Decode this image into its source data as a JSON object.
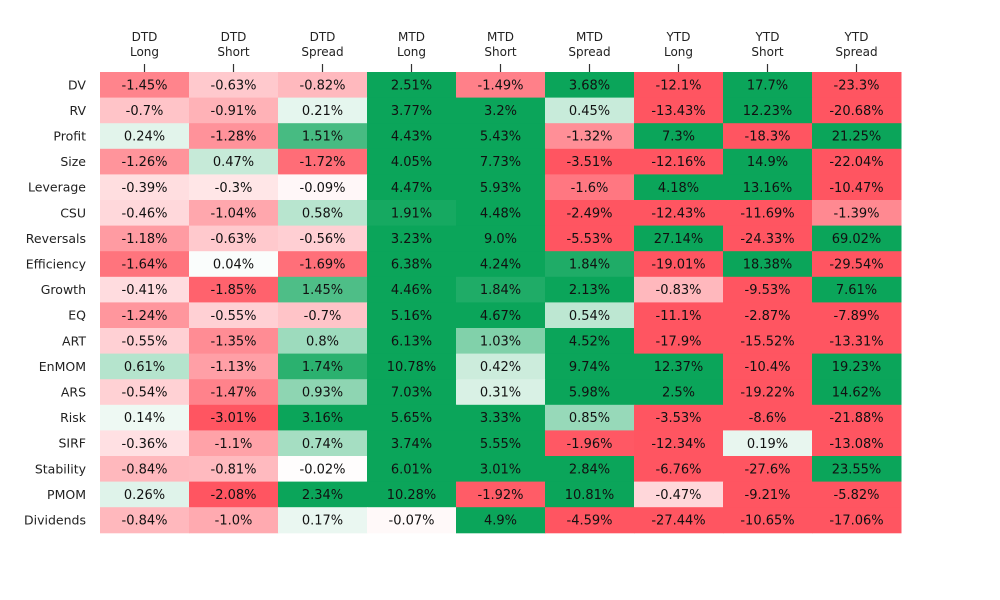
{
  "chart_data": {
    "type": "heatmap",
    "columns": [
      [
        "DTD",
        "Long"
      ],
      [
        "DTD",
        "Short"
      ],
      [
        "DTD",
        "Spread"
      ],
      [
        "MTD",
        "Long"
      ],
      [
        "MTD",
        "Short"
      ],
      [
        "MTD",
        "Spread"
      ],
      [
        "YTD",
        "Long"
      ],
      [
        "YTD",
        "Short"
      ],
      [
        "YTD",
        "Spread"
      ]
    ],
    "rows": [
      "DV",
      "RV",
      "Profit",
      "Size",
      "Leverage",
      "CSU",
      "Reversals",
      "Efficiency",
      "Growth",
      "EQ",
      "ART",
      "EnMOM",
      "ARS",
      "Risk",
      "SIRF",
      "Stability",
      "PMOM",
      "Dividends"
    ],
    "values": [
      [
        -1.45,
        -0.63,
        -0.82,
        2.51,
        -1.49,
        3.68,
        -12.1,
        17.7,
        -23.3
      ],
      [
        -0.7,
        -0.91,
        0.21,
        3.77,
        3.2,
        0.45,
        -13.43,
        12.23,
        -20.68
      ],
      [
        0.24,
        -1.28,
        1.51,
        4.43,
        5.43,
        -1.32,
        7.3,
        -18.3,
        21.25
      ],
      [
        -1.26,
        0.47,
        -1.72,
        4.05,
        7.73,
        -3.51,
        -12.16,
        14.9,
        -22.04
      ],
      [
        -0.39,
        -0.3,
        -0.09,
        4.47,
        5.93,
        -1.6,
        4.18,
        13.16,
        -10.47
      ],
      [
        -0.46,
        -1.04,
        0.58,
        1.91,
        4.48,
        -2.49,
        -12.43,
        -11.69,
        -1.39
      ],
      [
        -1.18,
        -0.63,
        -0.56,
        3.23,
        9.0,
        -5.53,
        27.14,
        -24.33,
        69.02
      ],
      [
        -1.64,
        0.04,
        -1.69,
        6.38,
        4.24,
        1.84,
        -19.01,
        18.38,
        -29.54
      ],
      [
        -0.41,
        -1.85,
        1.45,
        4.46,
        1.84,
        2.13,
        -0.83,
        -9.53,
        7.61
      ],
      [
        -1.24,
        -0.55,
        -0.7,
        5.16,
        4.67,
        0.54,
        -11.1,
        -2.87,
        -7.89
      ],
      [
        -0.55,
        -1.35,
        0.8,
        6.13,
        1.03,
        4.52,
        -17.9,
        -15.52,
        -13.31
      ],
      [
        0.61,
        -1.13,
        1.74,
        10.78,
        0.42,
        9.74,
        12.37,
        -10.4,
        19.23
      ],
      [
        -0.54,
        -1.47,
        0.93,
        7.03,
        0.31,
        5.98,
        2.5,
        -19.22,
        14.62
      ],
      [
        0.14,
        -3.01,
        3.16,
        5.65,
        3.33,
        0.85,
        -3.53,
        -8.6,
        -21.88
      ],
      [
        -0.36,
        -1.1,
        0.74,
        3.74,
        5.55,
        -1.96,
        -12.34,
        0.19,
        -13.08
      ],
      [
        -0.84,
        -0.81,
        -0.02,
        6.01,
        3.01,
        2.84,
        -6.76,
        -27.6,
        23.55
      ],
      [
        0.26,
        -2.08,
        2.34,
        10.28,
        -1.92,
        10.81,
        -0.47,
        -9.21,
        -5.82
      ],
      [
        -0.84,
        -1.0,
        0.17,
        -0.07,
        4.9,
        -4.59,
        -27.44,
        -10.65,
        -17.06
      ]
    ],
    "value_labels": [
      [
        "-1.45%",
        "-0.63%",
        "-0.82%",
        "2.51%",
        "-1.49%",
        "3.68%",
        "-12.1%",
        "17.7%",
        "-23.3%"
      ],
      [
        "-0.7%",
        "-0.91%",
        "0.21%",
        "3.77%",
        "3.2%",
        "0.45%",
        "-13.43%",
        "12.23%",
        "-20.68%"
      ],
      [
        "0.24%",
        "-1.28%",
        "1.51%",
        "4.43%",
        "5.43%",
        "-1.32%",
        "7.3%",
        "-18.3%",
        "21.25%"
      ],
      [
        "-1.26%",
        "0.47%",
        "-1.72%",
        "4.05%",
        "7.73%",
        "-3.51%",
        "-12.16%",
        "14.9%",
        "-22.04%"
      ],
      [
        "-0.39%",
        "-0.3%",
        "-0.09%",
        "4.47%",
        "5.93%",
        "-1.6%",
        "4.18%",
        "13.16%",
        "-10.47%"
      ],
      [
        "-0.46%",
        "-1.04%",
        "0.58%",
        "1.91%",
        "4.48%",
        "-2.49%",
        "-12.43%",
        "-11.69%",
        "-1.39%"
      ],
      [
        "-1.18%",
        "-0.63%",
        "-0.56%",
        "3.23%",
        "9.0%",
        "-5.53%",
        "27.14%",
        "-24.33%",
        "69.02%"
      ],
      [
        "-1.64%",
        "0.04%",
        "-1.69%",
        "6.38%",
        "4.24%",
        "1.84%",
        "-19.01%",
        "18.38%",
        "-29.54%"
      ],
      [
        "-0.41%",
        "-1.85%",
        "1.45%",
        "4.46%",
        "1.84%",
        "2.13%",
        "-0.83%",
        "-9.53%",
        "7.61%"
      ],
      [
        "-1.24%",
        "-0.55%",
        "-0.7%",
        "5.16%",
        "4.67%",
        "0.54%",
        "-11.1%",
        "-2.87%",
        "-7.89%"
      ],
      [
        "-0.55%",
        "-1.35%",
        "0.8%",
        "6.13%",
        "1.03%",
        "4.52%",
        "-17.9%",
        "-15.52%",
        "-13.31%"
      ],
      [
        "0.61%",
        "-1.13%",
        "1.74%",
        "10.78%",
        "0.42%",
        "9.74%",
        "12.37%",
        "-10.4%",
        "19.23%"
      ],
      [
        "-0.54%",
        "-1.47%",
        "0.93%",
        "7.03%",
        "0.31%",
        "5.98%",
        "2.5%",
        "-19.22%",
        "14.62%"
      ],
      [
        "0.14%",
        "-3.01%",
        "3.16%",
        "5.65%",
        "3.33%",
        "0.85%",
        "-3.53%",
        "-8.6%",
        "-21.88%"
      ],
      [
        "-0.36%",
        "-1.1%",
        "0.74%",
        "3.74%",
        "5.55%",
        "-1.96%",
        "-12.34%",
        "0.19%",
        "-13.08%"
      ],
      [
        "-0.84%",
        "-0.81%",
        "-0.02%",
        "6.01%",
        "3.01%",
        "2.84%",
        "-6.76%",
        "-27.6%",
        "23.55%"
      ],
      [
        "0.26%",
        "-2.08%",
        "2.34%",
        "10.28%",
        "-1.92%",
        "10.81%",
        "-0.47%",
        "-9.21%",
        "-5.82%"
      ],
      [
        "-0.84%",
        "-1.0%",
        "0.17%",
        "-0.07%",
        "4.9%",
        "-4.59%",
        "-27.44%",
        "-10.65%",
        "-17.06%"
      ]
    ],
    "color_scale": {
      "negative": "#ff5561",
      "midpoint": "#ffffff",
      "positive": "#0ba55a",
      "saturation_limit": 2.0
    },
    "text_color": "#111111",
    "tick_color": "#333333",
    "legend": "none",
    "grid": false
  }
}
